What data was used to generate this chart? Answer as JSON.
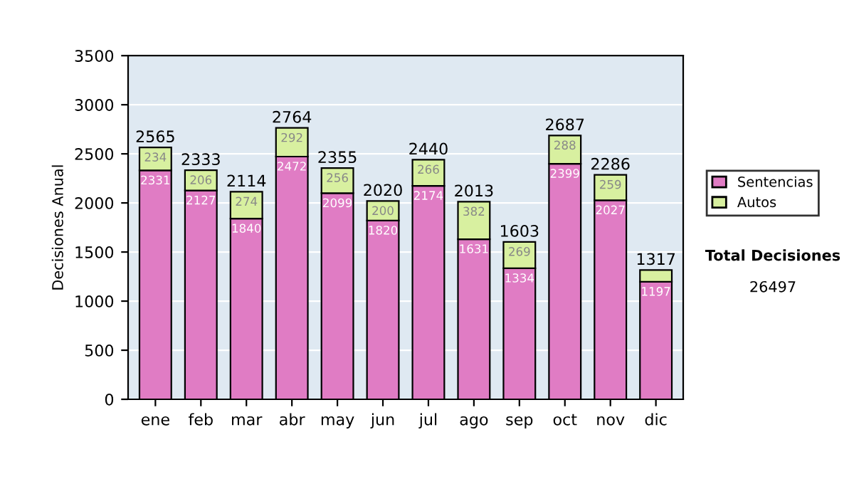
{
  "chart_data": {
    "type": "bar",
    "stacked": true,
    "ylabel": "Decisiones Anual",
    "categories": [
      "ene",
      "feb",
      "mar",
      "abr",
      "may",
      "jun",
      "jul",
      "ago",
      "sep",
      "oct",
      "nov",
      "dic"
    ],
    "series": [
      {
        "name": "Sentencias",
        "color": "#e07cc4",
        "values": [
          2331,
          2127,
          1840,
          2472,
          2099,
          1820,
          2174,
          1631,
          1334,
          2399,
          2027,
          1197
        ],
        "value_labels": [
          "2331",
          "2127",
          "1840",
          "2472",
          "2099",
          "1820",
          "2174",
          "1631",
          "1334",
          "2399",
          "2027",
          "1197"
        ]
      },
      {
        "name": "Autos",
        "color": "#d8f0a0",
        "values": [
          234,
          206,
          274,
          292,
          256,
          200,
          266,
          382,
          269,
          288,
          259,
          120
        ],
        "value_labels": [
          "234",
          "206",
          "274",
          "292",
          "256",
          "200",
          "266",
          "382",
          "269",
          "288",
          "259",
          null
        ]
      }
    ],
    "totals": [
      "2565",
      "2333",
      "2114",
      "2764",
      "2355",
      "2020",
      "2440",
      "2013",
      "1603",
      "2687",
      "2286",
      "1317"
    ],
    "ylim": [
      0,
      3500
    ],
    "yticks": [
      0,
      500,
      1000,
      1500,
      2000,
      2500,
      3000,
      3500
    ],
    "grid": "y",
    "legend": "right",
    "annotations": [
      "Total Decisiones",
      "26497"
    ]
  }
}
